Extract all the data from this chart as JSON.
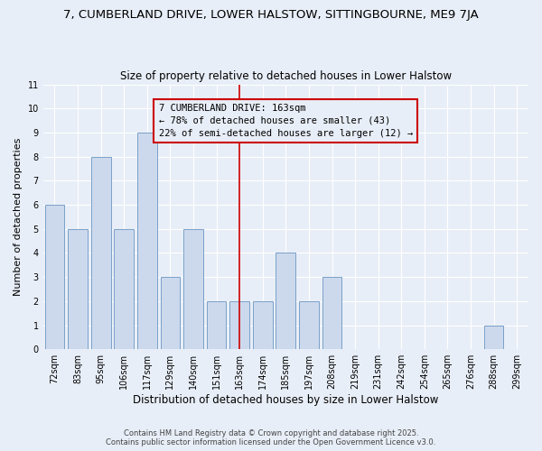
{
  "title": "7, CUMBERLAND DRIVE, LOWER HALSTOW, SITTINGBOURNE, ME9 7JA",
  "subtitle": "Size of property relative to detached houses in Lower Halstow",
  "xlabel": "Distribution of detached houses by size in Lower Halstow",
  "ylabel": "Number of detached properties",
  "categories": [
    "72sqm",
    "83sqm",
    "95sqm",
    "106sqm",
    "117sqm",
    "129sqm",
    "140sqm",
    "151sqm",
    "163sqm",
    "174sqm",
    "185sqm",
    "197sqm",
    "208sqm",
    "219sqm",
    "231sqm",
    "242sqm",
    "254sqm",
    "265sqm",
    "276sqm",
    "288sqm",
    "299sqm"
  ],
  "values": [
    6,
    5,
    8,
    5,
    9,
    3,
    5,
    2,
    2,
    2,
    4,
    2,
    3,
    0,
    0,
    0,
    0,
    0,
    0,
    1,
    0
  ],
  "bar_color": "#ccd9ed",
  "bar_edge_color": "#7aa0c8",
  "highlight_index": 8,
  "highlight_line_color": "#cc0000",
  "annotation_line1": "7 CUMBERLAND DRIVE: 163sqm",
  "annotation_line2": "← 78% of detached houses are smaller (43)",
  "annotation_line3": "22% of semi-detached houses are larger (12) →",
  "annotation_box_color": "#cc0000",
  "ylim": [
    0,
    11
  ],
  "yticks": [
    0,
    1,
    2,
    3,
    4,
    5,
    6,
    7,
    8,
    9,
    10,
    11
  ],
  "background_color": "#e8eef7",
  "grid_color": "#ffffff",
  "footer": "Contains HM Land Registry data © Crown copyright and database right 2025.\nContains public sector information licensed under the Open Government Licence v3.0.",
  "title_fontsize": 9.5,
  "subtitle_fontsize": 8.5,
  "xlabel_fontsize": 8.5,
  "ylabel_fontsize": 8,
  "tick_fontsize": 7,
  "annotation_fontsize": 7.5,
  "footer_fontsize": 6
}
